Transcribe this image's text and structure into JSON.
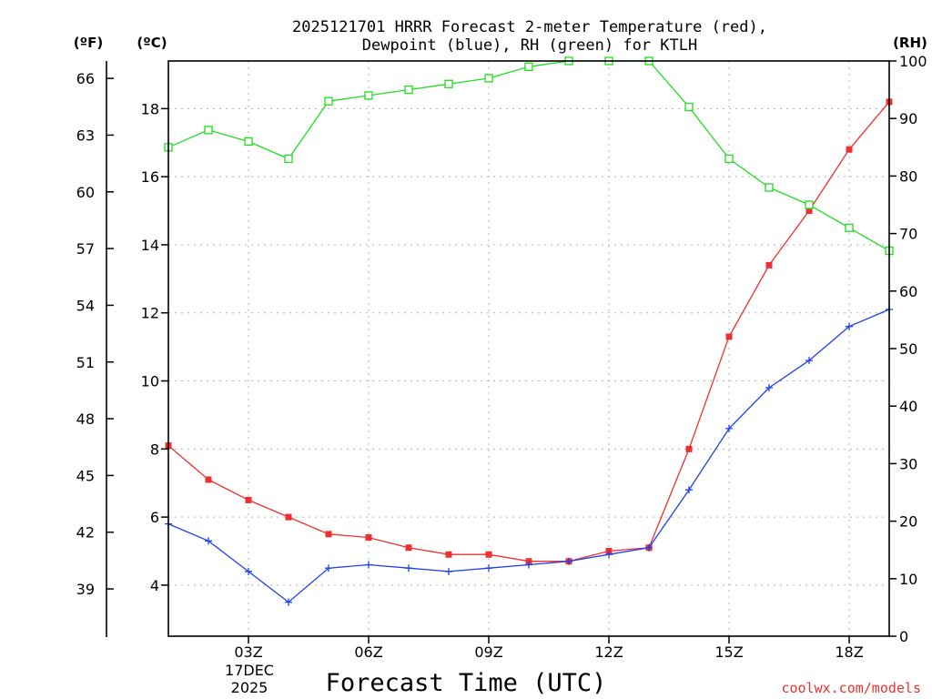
{
  "chart_data": {
    "type": "line",
    "title_line1": "2025121701 HRRR Forecast 2-meter Temperature (red),",
    "title_line2": "Dewpoint (blue), RH (green) for KTLH",
    "xlabel": "Forecast Time (UTC)",
    "credit": "coolwx.com/models",
    "date_label_line1": "17DEC",
    "date_label_line2": "2025",
    "unit_labels": {
      "fahrenheit": "(ºF)",
      "celsius": "(ºC)",
      "rh": "(RH)"
    },
    "x_hours": [
      1,
      2,
      3,
      4,
      5,
      6,
      7,
      8,
      9,
      10,
      11,
      12,
      13,
      14,
      15,
      16,
      17,
      18,
      19
    ],
    "xlim": [
      1,
      19
    ],
    "x_ticks": [
      {
        "hour": 3,
        "label": "03Z"
      },
      {
        "hour": 6,
        "label": "06Z"
      },
      {
        "hour": 9,
        "label": "09Z"
      },
      {
        "hour": 12,
        "label": "12Z"
      },
      {
        "hour": 15,
        "label": "15Z"
      },
      {
        "hour": 18,
        "label": "18Z"
      }
    ],
    "celsius_range": [
      2.5,
      19.4
    ],
    "celsius_ticks": [
      4,
      6,
      8,
      10,
      12,
      14,
      16,
      18
    ],
    "fahrenheit_ticks": [
      39,
      42,
      45,
      48,
      51,
      54,
      57,
      60,
      63,
      66
    ],
    "rh_range": [
      0,
      100
    ],
    "rh_ticks": [
      0,
      10,
      20,
      30,
      40,
      50,
      60,
      70,
      80,
      90,
      100
    ],
    "series": [
      {
        "name": "Temperature",
        "axis": "celsius",
        "color": "#ee3030",
        "marker": "filled-square",
        "values": [
          8.1,
          7.1,
          6.5,
          6.0,
          5.5,
          5.4,
          5.1,
          4.9,
          4.9,
          4.7,
          4.7,
          5.0,
          5.1,
          8.0,
          11.3,
          13.4,
          15.0,
          16.8,
          18.2
        ]
      },
      {
        "name": "Dewpoint",
        "axis": "celsius",
        "color": "#2040ee",
        "marker": "plus",
        "values": [
          5.8,
          5.3,
          4.4,
          3.5,
          4.5,
          4.6,
          4.5,
          4.4,
          4.5,
          4.6,
          4.7,
          4.9,
          5.1,
          6.8,
          8.6,
          9.8,
          10.6,
          11.6,
          12.1
        ]
      },
      {
        "name": "RH",
        "axis": "rh",
        "color": "#20dd20",
        "marker": "open-square",
        "values": [
          85,
          88,
          86,
          83,
          93,
          94,
          95,
          96,
          97,
          99,
          100,
          100,
          100,
          92,
          83,
          78,
          75,
          71,
          67
        ]
      }
    ]
  }
}
